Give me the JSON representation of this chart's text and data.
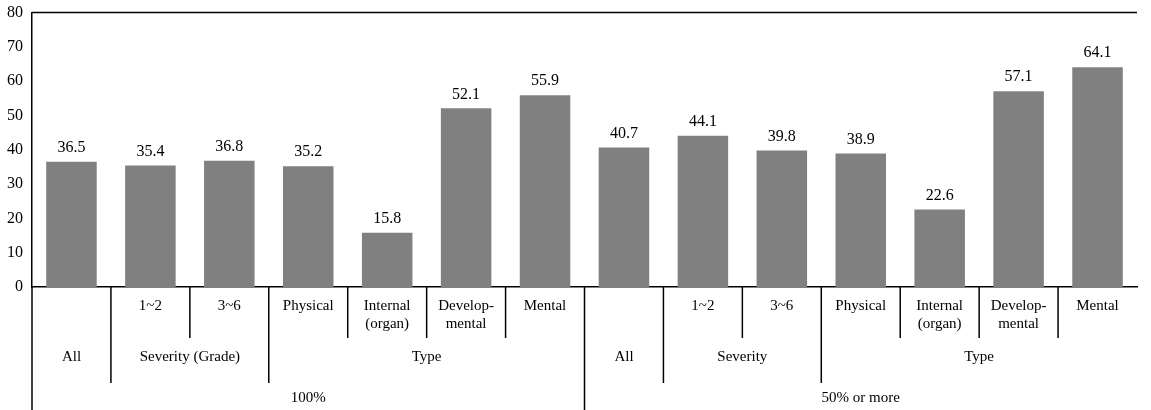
{
  "chart_data": {
    "type": "bar",
    "categories": [
      null,
      "1~2",
      "3~6",
      "Physical",
      "Internal\n(organ)",
      "Develop-\nmental",
      "Mental",
      null,
      "1~2",
      "3~6",
      "Physical",
      "Internal\n(organ)",
      "Develop-\nmental",
      "Mental"
    ],
    "values": [
      36.5,
      35.4,
      36.8,
      35.2,
      15.8,
      52.1,
      55.9,
      40.7,
      44.1,
      39.8,
      38.9,
      22.6,
      57.1,
      64.1
    ],
    "color": "#808080",
    "ylim": [
      0,
      80
    ],
    "yticks": [
      0,
      10,
      20,
      30,
      40,
      50,
      60,
      70,
      80
    ],
    "grid": false,
    "legend": false,
    "data_labels": true,
    "annotations": [
      "All",
      "Severity (Grade)",
      "Type",
      "100%",
      "All",
      "Severity",
      "Type",
      "50% or more"
    ]
  }
}
